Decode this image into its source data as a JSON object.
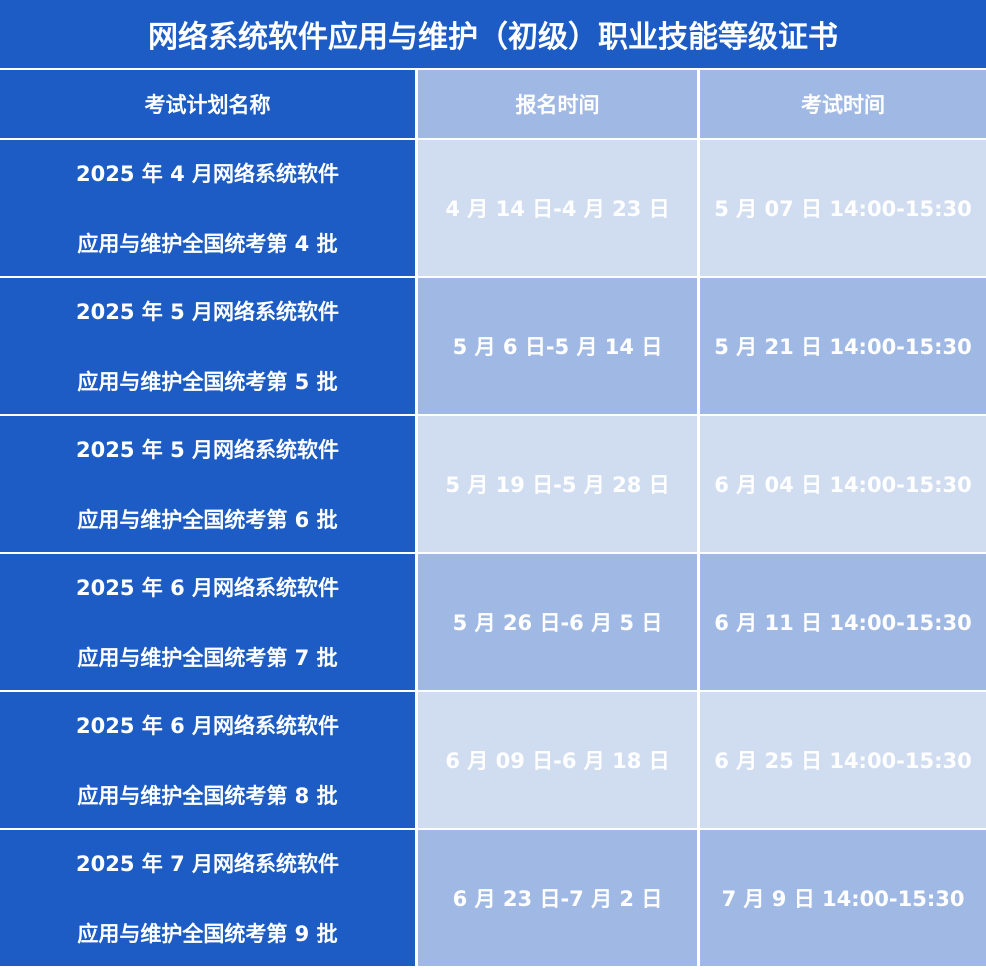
{
  "title": "网络系统软件应用与维护（初级）职业技能等级证书",
  "headers": [
    "考试计划名称",
    "报名时间",
    "考试时间"
  ],
  "rows": [
    {
      "name_line1": "2025 年 4 月网络系统软件",
      "name_line2": "应用与维护全国统考第 4 批",
      "registration": "4 月 14 日-4 月 23 日",
      "exam": "5 月 07 日  14:00-15:30"
    },
    {
      "name_line1": "2025 年 5 月网络系统软件",
      "name_line2": "应用与维护全国统考第 5 批",
      "registration": "5 月 6 日-5 月 14 日",
      "exam": "5 月 21 日  14:00-15:30"
    },
    {
      "name_line1": "2025 年 5 月网络系统软件",
      "name_line2": "应用与维护全国统考第 6 批",
      "registration": "5 月 19 日-5 月 28 日",
      "exam": "6 月 04 日  14:00-15:30"
    },
    {
      "name_line1": "2025 年 6 月网络系统软件",
      "name_line2": "应用与维护全国统考第 7 批",
      "registration": "5 月 26 日-6 月 5 日",
      "exam": "6 月 11 日  14:00-15:30"
    },
    {
      "name_line1": "2025 年 6 月网络系统软件",
      "name_line2": "应用与维护全国统考第 8 批",
      "registration": "6 月 09 日-6 月 18 日",
      "exam": "6 月 25 日  14:00-15:30"
    },
    {
      "name_line1": "2025 年 7 月网络系统软件",
      "name_line2": "应用与维护全国统考第 9 批",
      "registration": "6 月 23 日-7 月 2 日",
      "exam": "7 月 9 日  14:00-15:30"
    }
  ],
  "colors": {
    "dark": "#1c5cc4",
    "mid": "#a0b9e4",
    "light": "#d0dcf0"
  }
}
